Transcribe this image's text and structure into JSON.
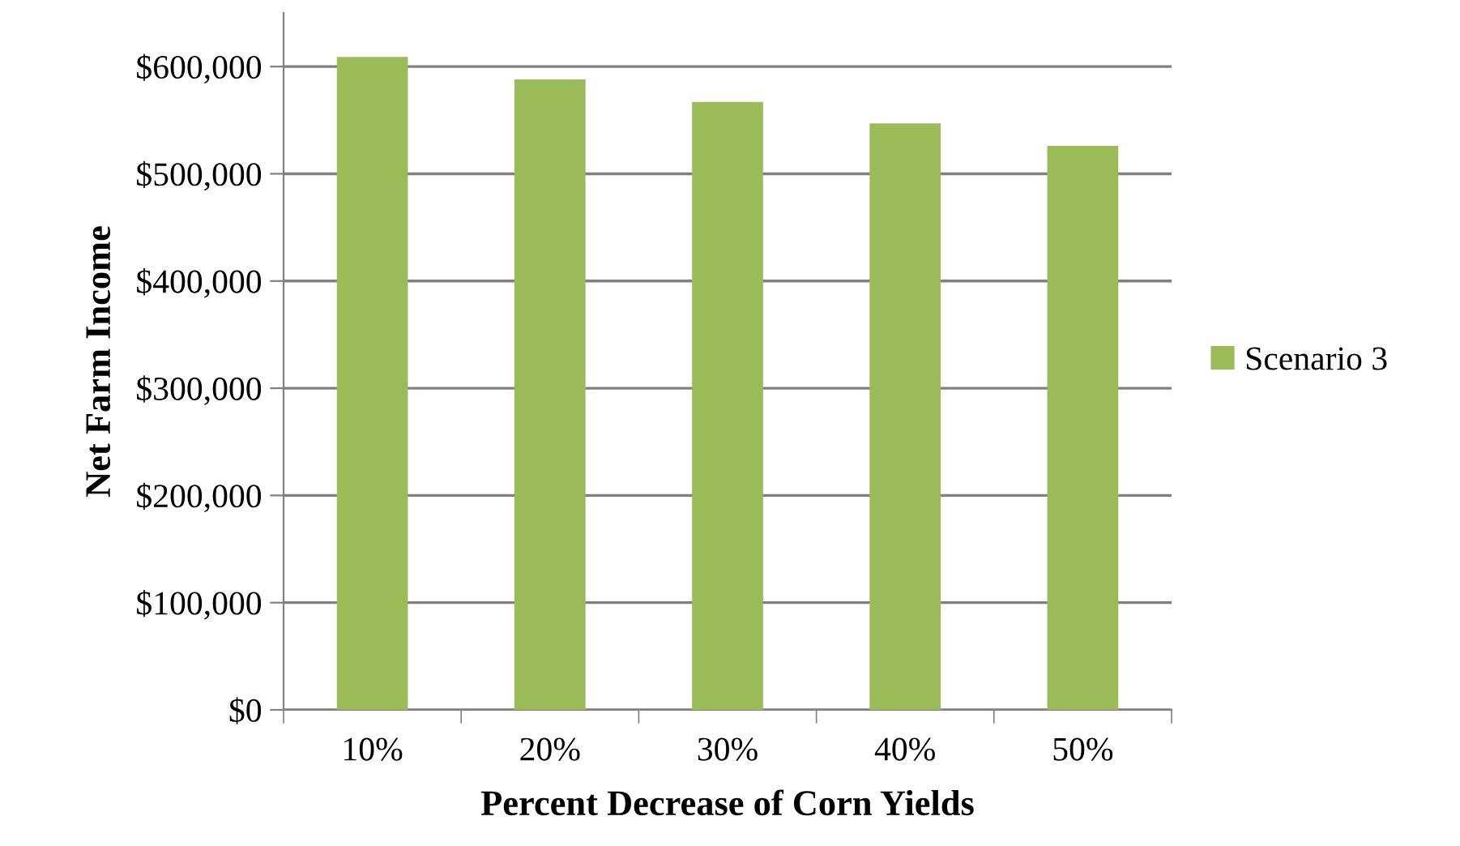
{
  "chart_data": {
    "type": "bar",
    "xlabel": "Percent Decrease of Corn Yields",
    "ylabel": "Net Farm Income",
    "categories": [
      "10%",
      "20%",
      "30%",
      "40%",
      "50%"
    ],
    "series": [
      {
        "name": "Scenario 3",
        "color": "#9bbb59",
        "values": [
          609000,
          588000,
          567000,
          547000,
          526000
        ]
      }
    ],
    "ylim": [
      0,
      650000
    ],
    "yticks": [
      {
        "value": 0,
        "label": "$0"
      },
      {
        "value": 100000,
        "label": "$100,000"
      },
      {
        "value": 200000,
        "label": "$200,000"
      },
      {
        "value": 300000,
        "label": "$300,000"
      },
      {
        "value": 400000,
        "label": "$400,000"
      },
      {
        "value": 500000,
        "label": "$500,000"
      },
      {
        "value": 600000,
        "label": "$600,000"
      }
    ],
    "grid": "y",
    "legend": "right"
  }
}
